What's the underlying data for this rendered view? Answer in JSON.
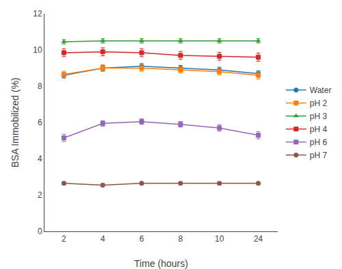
{
  "chart_data": {
    "type": "line",
    "xlabel": "Time (hours)",
    "ylabel": "BSA Immobilized (%)",
    "categories": [
      "2",
      "4",
      "6",
      "8",
      "10",
      "24"
    ],
    "series": [
      {
        "name": "Water",
        "values": [
          8.6,
          9.0,
          9.1,
          9.0,
          8.9,
          8.7
        ],
        "yerr": [
          0.15,
          0.15,
          0.15,
          0.15,
          0.15,
          0.15
        ],
        "marker": "circle"
      },
      {
        "name": "pH 2",
        "values": [
          8.65,
          9.0,
          9.0,
          8.9,
          8.8,
          8.6
        ],
        "yerr": [
          0.18,
          0.18,
          0.18,
          0.18,
          0.18,
          0.2
        ],
        "marker": "square"
      },
      {
        "name": "pH 3",
        "values": [
          10.45,
          10.5,
          10.5,
          10.5,
          10.5,
          10.5
        ],
        "yerr": [
          0.12,
          0.12,
          0.12,
          0.12,
          0.12,
          0.12
        ],
        "marker": "triangle-up"
      },
      {
        "name": "pH 4",
        "values": [
          9.85,
          9.9,
          9.85,
          9.7,
          9.65,
          9.6
        ],
        "yerr": [
          0.22,
          0.22,
          0.22,
          0.22,
          0.22,
          0.22
        ],
        "marker": "square"
      },
      {
        "name": "pH 6",
        "values": [
          5.15,
          5.95,
          6.05,
          5.9,
          5.7,
          5.3
        ],
        "yerr": [
          0.2,
          0.15,
          0.15,
          0.15,
          0.18,
          0.2
        ],
        "marker": "square"
      },
      {
        "name": "pH 7",
        "values": [
          2.65,
          2.55,
          2.65,
          2.65,
          2.65,
          2.65
        ],
        "yerr": [
          0.08,
          0.08,
          0.08,
          0.08,
          0.08,
          0.08
        ],
        "marker": "circle"
      }
    ],
    "ylim": [
      0,
      12
    ],
    "yticks": [
      0,
      2,
      4,
      6,
      8,
      10,
      12
    ],
    "grid": false,
    "legend": "right"
  }
}
